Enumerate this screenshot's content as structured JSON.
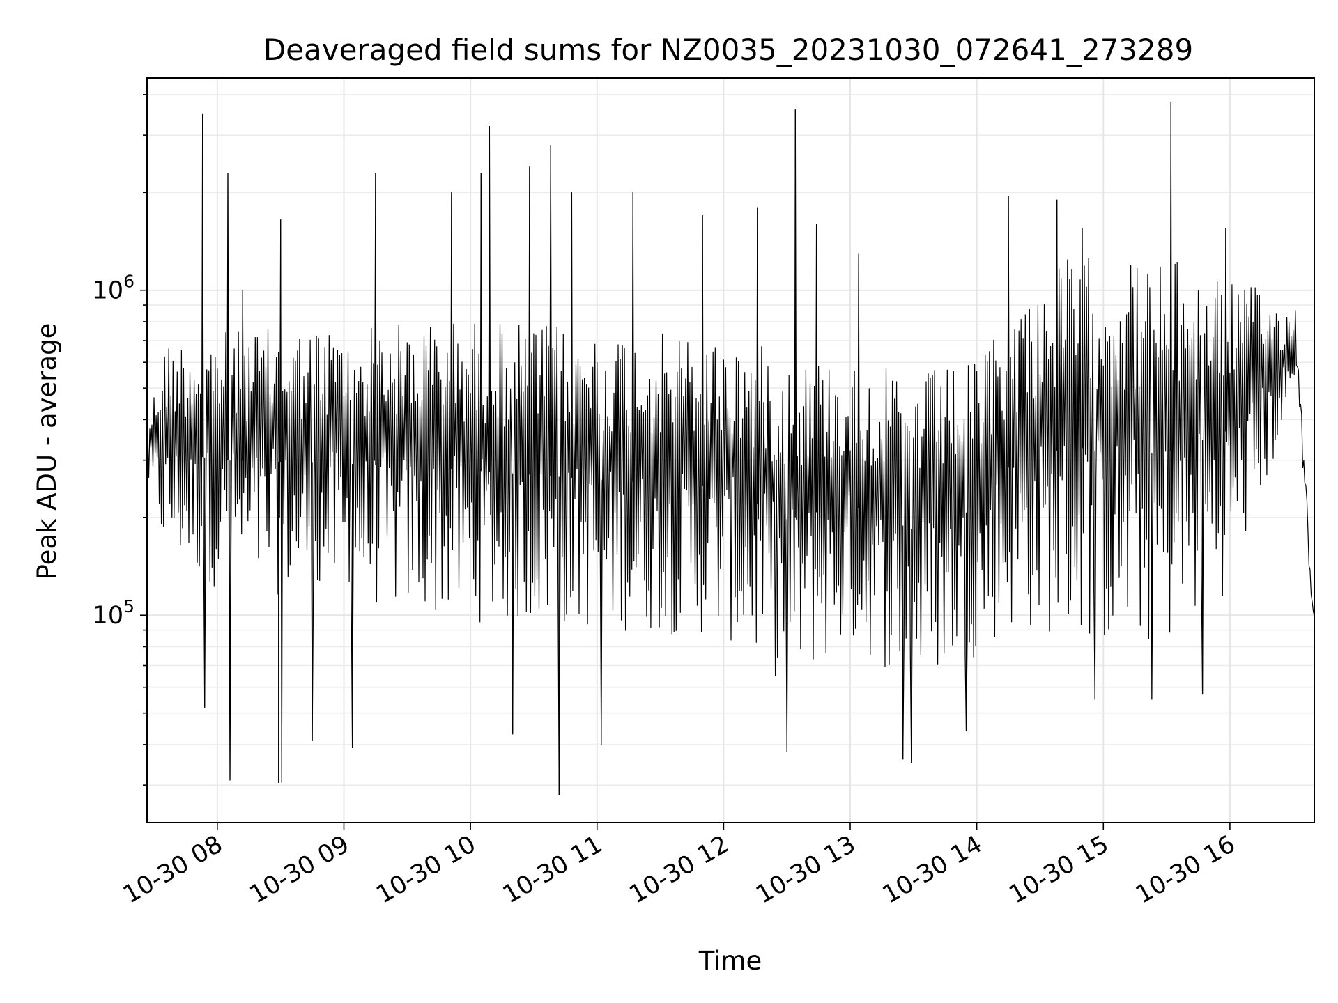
{
  "chart_data": {
    "type": "line",
    "title": "Deaveraged field sums for NZ0035_20231030_072641_273289",
    "xlabel": "Time",
    "ylabel": "Peak ADU - average",
    "x_range": [
      "2023-10-30 07:26:41",
      "2023-10-30 16:40:00"
    ],
    "x_ticks": [
      {
        "t": "2023-10-30 08:00",
        "label": "10-30 08"
      },
      {
        "t": "2023-10-30 09:00",
        "label": "10-30 09"
      },
      {
        "t": "2023-10-30 10:00",
        "label": "10-30 10"
      },
      {
        "t": "2023-10-30 11:00",
        "label": "10-30 11"
      },
      {
        "t": "2023-10-30 12:00",
        "label": "10-30 12"
      },
      {
        "t": "2023-10-30 13:00",
        "label": "10-30 13"
      },
      {
        "t": "2023-10-30 14:00",
        "label": "10-30 14"
      },
      {
        "t": "2023-10-30 15:00",
        "label": "10-30 15"
      },
      {
        "t": "2023-10-30 16:00",
        "label": "10-30 16"
      }
    ],
    "y_scale": "log",
    "ylim": [
      23000,
      4500000
    ],
    "y_major_ticks": [
      {
        "value": 100000,
        "base": "10",
        "exp": "5"
      },
      {
        "value": 1000000,
        "base": "10",
        "exp": "6"
      }
    ],
    "grid": true,
    "line_color": "#000000",
    "series": [
      {
        "sampling_minutes": 0.5,
        "envelope": [
          {
            "t": "2023-10-30 07:27",
            "low": 250000,
            "high": 400000
          },
          {
            "t": "2023-10-30 07:35",
            "low": 150000,
            "high": 700000
          },
          {
            "t": "2023-10-30 08:00",
            "low": 120000,
            "high": 750000
          },
          {
            "t": "2023-10-30 09:00",
            "low": 110000,
            "high": 780000
          },
          {
            "t": "2023-10-30 10:00",
            "low": 95000,
            "high": 820000
          },
          {
            "t": "2023-10-30 11:00",
            "low": 90000,
            "high": 760000
          },
          {
            "t": "2023-10-30 12:00",
            "low": 85000,
            "high": 720000
          },
          {
            "t": "2023-10-30 12:30",
            "low": 60000,
            "high": 650000
          },
          {
            "t": "2023-10-30 13:00",
            "low": 80000,
            "high": 600000
          },
          {
            "t": "2023-10-30 13:30",
            "low": 60000,
            "high": 560000
          },
          {
            "t": "2023-10-30 14:00",
            "low": 75000,
            "high": 600000
          },
          {
            "t": "2023-10-30 14:15",
            "low": 90000,
            "high": 900000
          },
          {
            "t": "2023-10-30 14:45",
            "low": 85000,
            "high": 1300000
          },
          {
            "t": "2023-10-30 15:00",
            "low": 80000,
            "high": 1250000
          },
          {
            "t": "2023-10-30 15:30",
            "low": 80000,
            "high": 1250000
          },
          {
            "t": "2023-10-30 16:00",
            "low": 120000,
            "high": 1150000
          },
          {
            "t": "2023-10-30 16:25",
            "low": 350000,
            "high": 900000
          },
          {
            "t": "2023-10-30 16:31",
            "low": 500000,
            "high": 900000
          },
          {
            "t": "2023-10-30 16:40",
            "low": 65000,
            "high": 100000
          }
        ],
        "spikes": [
          {
            "t": "2023-10-30 07:53",
            "value": 3500000
          },
          {
            "t": "2023-10-30 07:54",
            "value": 52000
          },
          {
            "t": "2023-10-30 08:05",
            "value": 2300000
          },
          {
            "t": "2023-10-30 08:06",
            "value": 31000
          },
          {
            "t": "2023-10-30 08:12",
            "value": 1000000
          },
          {
            "t": "2023-10-30 08:30",
            "value": 1650000
          },
          {
            "t": "2023-10-30 08:29",
            "value": 30500
          },
          {
            "t": "2023-10-30 08:45",
            "value": 41000
          },
          {
            "t": "2023-10-30 09:04",
            "value": 39000
          },
          {
            "t": "2023-10-30 09:15",
            "value": 2300000
          },
          {
            "t": "2023-10-30 09:51",
            "value": 2000000
          },
          {
            "t": "2023-10-30 10:05",
            "value": 2300000
          },
          {
            "t": "2023-10-30 10:09",
            "value": 3200000
          },
          {
            "t": "2023-10-30 10:20",
            "value": 43000
          },
          {
            "t": "2023-10-30 10:28",
            "value": 2400000
          },
          {
            "t": "2023-10-30 10:38",
            "value": 2800000
          },
          {
            "t": "2023-10-30 10:42",
            "value": 28000
          },
          {
            "t": "2023-10-30 10:48",
            "value": 2000000
          },
          {
            "t": "2023-10-30 11:02",
            "value": 40000
          },
          {
            "t": "2023-10-30 11:17",
            "value": 2000000
          },
          {
            "t": "2023-10-30 11:50",
            "value": 1700000
          },
          {
            "t": "2023-10-30 12:16",
            "value": 1800000
          },
          {
            "t": "2023-10-30 12:30",
            "value": 38000
          },
          {
            "t": "2023-10-30 12:34",
            "value": 3600000
          },
          {
            "t": "2023-10-30 12:44",
            "value": 1600000
          },
          {
            "t": "2023-10-30 13:04",
            "value": 1300000
          },
          {
            "t": "2023-10-30 13:25",
            "value": 36000
          },
          {
            "t": "2023-10-30 13:29",
            "value": 35000
          },
          {
            "t": "2023-10-30 13:55",
            "value": 44000
          },
          {
            "t": "2023-10-30 14:15",
            "value": 1950000
          },
          {
            "t": "2023-10-30 14:38",
            "value": 1900000
          },
          {
            "t": "2023-10-30 14:50",
            "value": 1550000
          },
          {
            "t": "2023-10-30 14:56",
            "value": 55000
          },
          {
            "t": "2023-10-30 15:23",
            "value": 55000
          },
          {
            "t": "2023-10-30 15:32",
            "value": 3800000
          },
          {
            "t": "2023-10-30 15:47",
            "value": 57000
          },
          {
            "t": "2023-10-30 15:58",
            "value": 1550000
          }
        ]
      }
    ]
  }
}
